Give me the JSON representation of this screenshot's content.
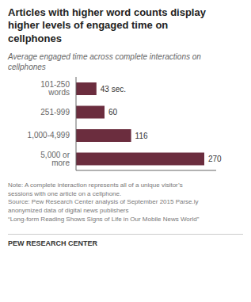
{
  "chart_data": {
    "type": "bar",
    "title": "Articles with higher word counts display\nhigher levels of engaged time on\ncellphones",
    "subtitle": "Average engaged time across complete interactions on\ncellphones",
    "categories": [
      "101-250 words",
      "251-999",
      "1,000-4,999",
      "5,000 or more"
    ],
    "values": [
      43,
      60,
      116,
      270
    ],
    "value_labels": [
      "43 sec.",
      "60",
      "116",
      "270"
    ],
    "color": "#6b2d3e",
    "orientation": "horizontal",
    "data_labels": true,
    "tick_labels": "y",
    "xlim": [
      0,
      295
    ],
    "note": "Note: A complete interaction represents all of a unique visitor’s\nsessions with one article on a cellphone.\nSource: Pew Research Center analysis of September 2015 Parse.ly\nanonymized data of digital news publishers\n“Long-form Reading Shows Signs of Life in Our Mobile News World”",
    "footer": "PEW RESEARCH CENTER"
  }
}
